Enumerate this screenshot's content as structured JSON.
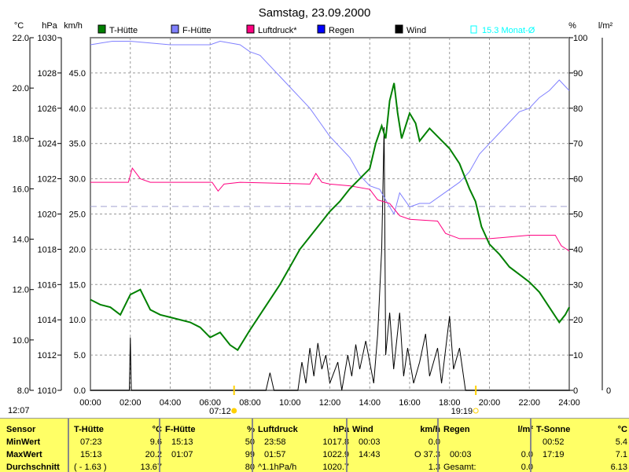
{
  "chart_data": {
    "type": "line",
    "title": "Samstag, 23.09.2000",
    "x_range": [
      0,
      24
    ],
    "x_ticks": [
      "00:00",
      "02:00",
      "04:00",
      "06:00",
      "08:00",
      "10:00",
      "12:00",
      "14:00",
      "16:00",
      "18:00",
      "20:00",
      "22:00",
      "24:00"
    ],
    "axes": {
      "temp": {
        "unit": "°C",
        "range": [
          8,
          22
        ],
        "ticks": [
          "22.0",
          "20.0",
          "18.0",
          "16.0",
          "14.0",
          "12.0",
          "10.0",
          "8.0"
        ]
      },
      "pressure": {
        "unit": "hPa",
        "range": [
          1010,
          1030
        ],
        "ticks": [
          "1030",
          "1028",
          "1026",
          "1024",
          "1022",
          "1020",
          "1018",
          "1016",
          "1014",
          "1012",
          "1010"
        ]
      },
      "wind": {
        "unit": "km/h",
        "range": [
          0,
          50
        ],
        "ticks": [
          "45.0",
          "40.0",
          "35.0",
          "30.0",
          "25.0",
          "20.0",
          "15.0",
          "10.0",
          "5.0",
          "0.0"
        ]
      },
      "humidity": {
        "unit": "%",
        "range": [
          0,
          100
        ],
        "ticks": [
          "100",
          "90",
          "80",
          "70",
          "60",
          "50",
          "40",
          "30",
          "20",
          "10",
          "0"
        ]
      },
      "rain": {
        "unit": "l/m²",
        "ticks": [
          "0"
        ]
      }
    },
    "legend": [
      {
        "name": "T-Hütte",
        "color": "#008000"
      },
      {
        "name": "F-Hütte",
        "color": "#8080ff"
      },
      {
        "name": "Luftdruck*",
        "color": "#ff0080"
      },
      {
        "name": "Regen",
        "color": "#0000ff"
      },
      {
        "name": "Wind",
        "color": "#000000"
      }
    ],
    "monthly_avg": {
      "label": "15.3 Monat-Ø",
      "value": 15.3,
      "color": "#00ffff"
    },
    "series": [
      {
        "name": "T-Hütte",
        "axis": "temp",
        "points": [
          [
            0,
            11.6
          ],
          [
            0.5,
            11.4
          ],
          [
            1,
            11.3
          ],
          [
            1.5,
            11.0
          ],
          [
            2,
            11.8
          ],
          [
            2.5,
            12.0
          ],
          [
            3,
            11.2
          ],
          [
            3.5,
            11.0
          ],
          [
            4,
            10.9
          ],
          [
            5,
            10.7
          ],
          [
            5.5,
            10.5
          ],
          [
            6,
            10.1
          ],
          [
            6.5,
            10.3
          ],
          [
            7,
            9.8
          ],
          [
            7.38,
            9.6
          ],
          [
            8,
            10.4
          ],
          [
            8.5,
            11.0
          ],
          [
            9,
            11.6
          ],
          [
            9.5,
            12.2
          ],
          [
            10,
            12.9
          ],
          [
            10.5,
            13.6
          ],
          [
            11,
            14.1
          ],
          [
            11.5,
            14.6
          ],
          [
            12,
            15.1
          ],
          [
            12.5,
            15.5
          ],
          [
            13,
            16.0
          ],
          [
            13.5,
            16.4
          ],
          [
            14,
            16.8
          ],
          [
            14.3,
            17.8
          ],
          [
            14.6,
            18.5
          ],
          [
            14.8,
            18.0
          ],
          [
            15.0,
            19.5
          ],
          [
            15.22,
            20.2
          ],
          [
            15.4,
            19.0
          ],
          [
            15.6,
            18.0
          ],
          [
            16,
            19.0
          ],
          [
            16.3,
            18.6
          ],
          [
            16.5,
            17.9
          ],
          [
            17,
            18.4
          ],
          [
            17.5,
            18.0
          ],
          [
            18,
            17.6
          ],
          [
            18.5,
            17.0
          ],
          [
            19,
            16.0
          ],
          [
            19.3,
            15.5
          ],
          [
            19.6,
            14.5
          ],
          [
            20,
            13.8
          ],
          [
            20.5,
            13.4
          ],
          [
            21,
            12.9
          ],
          [
            21.5,
            12.6
          ],
          [
            22,
            12.3
          ],
          [
            22.5,
            11.9
          ],
          [
            23,
            11.3
          ],
          [
            23.5,
            10.7
          ],
          [
            23.8,
            11.0
          ],
          [
            24,
            11.3
          ]
        ]
      },
      {
        "name": "F-Hütte",
        "axis": "humidity",
        "points": [
          [
            0,
            98
          ],
          [
            1.1,
            99
          ],
          [
            2,
            99
          ],
          [
            4,
            98
          ],
          [
            4.5,
            98
          ],
          [
            6,
            98
          ],
          [
            6.5,
            99
          ],
          [
            7.5,
            98
          ],
          [
            8,
            96
          ],
          [
            8.5,
            95
          ],
          [
            9,
            92
          ],
          [
            9.5,
            89
          ],
          [
            10,
            86
          ],
          [
            10.5,
            83
          ],
          [
            11,
            80
          ],
          [
            11.5,
            76
          ],
          [
            12,
            72
          ],
          [
            12.5,
            69
          ],
          [
            13,
            66
          ],
          [
            13.5,
            61
          ],
          [
            14,
            58
          ],
          [
            14.5,
            57
          ],
          [
            15,
            52
          ],
          [
            15.22,
            50
          ],
          [
            15.5,
            56
          ],
          [
            16,
            52
          ],
          [
            16.5,
            53
          ],
          [
            17,
            53
          ],
          [
            17.5,
            55
          ],
          [
            18,
            57
          ],
          [
            18.5,
            59
          ],
          [
            19,
            62
          ],
          [
            19.5,
            67
          ],
          [
            20,
            70
          ],
          [
            20.5,
            73
          ],
          [
            21,
            76
          ],
          [
            21.5,
            79
          ],
          [
            22,
            80
          ],
          [
            22.5,
            83
          ],
          [
            23,
            85
          ],
          [
            23.5,
            88
          ],
          [
            24,
            85
          ]
        ]
      },
      {
        "name": "Luftdruck*",
        "axis": "pressure",
        "points": [
          [
            0,
            1021.8
          ],
          [
            1.9,
            1021.8
          ],
          [
            2.1,
            1022.6
          ],
          [
            2.5,
            1022.0
          ],
          [
            3,
            1021.8
          ],
          [
            6.1,
            1021.8
          ],
          [
            6.4,
            1021.3
          ],
          [
            6.7,
            1021.7
          ],
          [
            7.5,
            1021.8
          ],
          [
            11,
            1021.7
          ],
          [
            11.3,
            1022.3
          ],
          [
            11.6,
            1021.8
          ],
          [
            12,
            1021.7
          ],
          [
            13,
            1021.6
          ],
          [
            14,
            1021.4
          ],
          [
            14.4,
            1020.8
          ],
          [
            15,
            1020.6
          ],
          [
            15.5,
            1019.9
          ],
          [
            16,
            1019.7
          ],
          [
            17.4,
            1019.6
          ],
          [
            17.8,
            1018.9
          ],
          [
            18.5,
            1018.6
          ],
          [
            20,
            1018.6
          ],
          [
            22,
            1018.8
          ],
          [
            23.3,
            1018.8
          ],
          [
            23.6,
            1018.2
          ],
          [
            24,
            1017.9
          ]
        ]
      },
      {
        "name": "Wind",
        "axis": "wind",
        "points": [
          [
            0,
            0
          ],
          [
            1.95,
            0
          ],
          [
            2.0,
            7.5
          ],
          [
            2.05,
            0
          ],
          [
            8.8,
            0
          ],
          [
            9.0,
            2.5
          ],
          [
            9.2,
            0
          ],
          [
            10.4,
            0
          ],
          [
            10.6,
            4
          ],
          [
            10.8,
            1
          ],
          [
            11,
            6
          ],
          [
            11.2,
            2
          ],
          [
            11.4,
            6.7
          ],
          [
            11.6,
            3
          ],
          [
            11.8,
            5
          ],
          [
            12,
            1
          ],
          [
            12.4,
            4
          ],
          [
            12.6,
            0
          ],
          [
            12.9,
            5
          ],
          [
            13.1,
            2
          ],
          [
            13.3,
            6.5
          ],
          [
            13.5,
            3
          ],
          [
            13.8,
            7
          ],
          [
            14,
            4
          ],
          [
            14.2,
            1
          ],
          [
            14.4,
            8
          ],
          [
            14.6,
            20
          ],
          [
            14.72,
            37.3
          ],
          [
            14.8,
            5
          ],
          [
            15,
            11
          ],
          [
            15.2,
            3
          ],
          [
            15.5,
            11
          ],
          [
            15.7,
            2
          ],
          [
            15.9,
            6
          ],
          [
            16.2,
            1
          ],
          [
            16.5,
            4
          ],
          [
            16.8,
            8
          ],
          [
            17,
            2
          ],
          [
            17.4,
            6
          ],
          [
            17.6,
            1
          ],
          [
            18,
            10.5
          ],
          [
            18.2,
            3
          ],
          [
            18.5,
            6
          ],
          [
            18.8,
            0
          ],
          [
            24,
            0
          ]
        ]
      }
    ],
    "sunrise": "07:12",
    "sunset": "19:19"
  },
  "footer_time": "12:07",
  "table": {
    "row_labels": [
      "Sensor",
      "MinWert",
      "MaxWert",
      "Durchschnitt"
    ],
    "cols": [
      {
        "title": "T-Hütte",
        "unit": "°C",
        "rows": [
          [
            "07:23",
            "9.6"
          ],
          [
            "15:13",
            "20.2"
          ],
          [
            "( - 1.63 )",
            "13.67"
          ]
        ]
      },
      {
        "title": "F-Hütte",
        "unit": "%",
        "rows": [
          [
            "15:13",
            "50"
          ],
          [
            "01:07",
            "99"
          ],
          [
            "",
            "80"
          ]
        ]
      },
      {
        "title": "Luftdruck",
        "unit": "hPa",
        "rows": [
          [
            "23:58",
            "1017.8"
          ],
          [
            "01:57",
            "1022.9"
          ],
          [
            "^1.1hPa/h",
            "1020.7"
          ]
        ]
      },
      {
        "title": "Wind",
        "unit": "km/h",
        "rows": [
          [
            "00:03",
            "0.0"
          ],
          [
            "14:43",
            "O 37.3"
          ],
          [
            "",
            "1.3"
          ]
        ]
      },
      {
        "title": "Regen",
        "unit": "l/m²",
        "rows": [
          [
            "",
            ""
          ],
          [
            "00:03",
            "0.0"
          ],
          [
            "Gesamt:",
            "0.0"
          ]
        ]
      },
      {
        "title": "T-Sonne",
        "unit": "°C",
        "rows": [
          [
            "00:52",
            "5.4"
          ],
          [
            "17:19",
            "7.1"
          ],
          [
            "",
            "6.13"
          ]
        ]
      }
    ]
  }
}
